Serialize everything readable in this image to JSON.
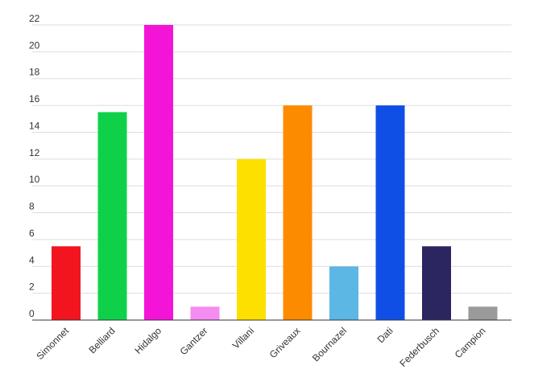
{
  "chart_data": {
    "type": "bar",
    "title": "",
    "xlabel": "",
    "ylabel": "",
    "ylim": [
      0,
      22
    ],
    "yticks": [
      0,
      2,
      4,
      6,
      8,
      10,
      12,
      14,
      16,
      18,
      20,
      22
    ],
    "grid": true,
    "legend": "none",
    "categories": [
      "Simonnet",
      "Belliard",
      "Hidalgo",
      "Gantzer",
      "Villani",
      "Griveaux",
      "Bournazel",
      "Dati",
      "Federbusch",
      "Campion"
    ],
    "values": [
      5.5,
      15.5,
      22,
      1,
      12,
      16,
      4,
      16,
      5.5,
      1
    ],
    "colors": [
      "#f2141e",
      "#0fd149",
      "#f414d8",
      "#f58cf2",
      "#fde000",
      "#fd8b00",
      "#5cb7e4",
      "#104fe6",
      "#2b2560",
      "#9a9a9a"
    ]
  }
}
